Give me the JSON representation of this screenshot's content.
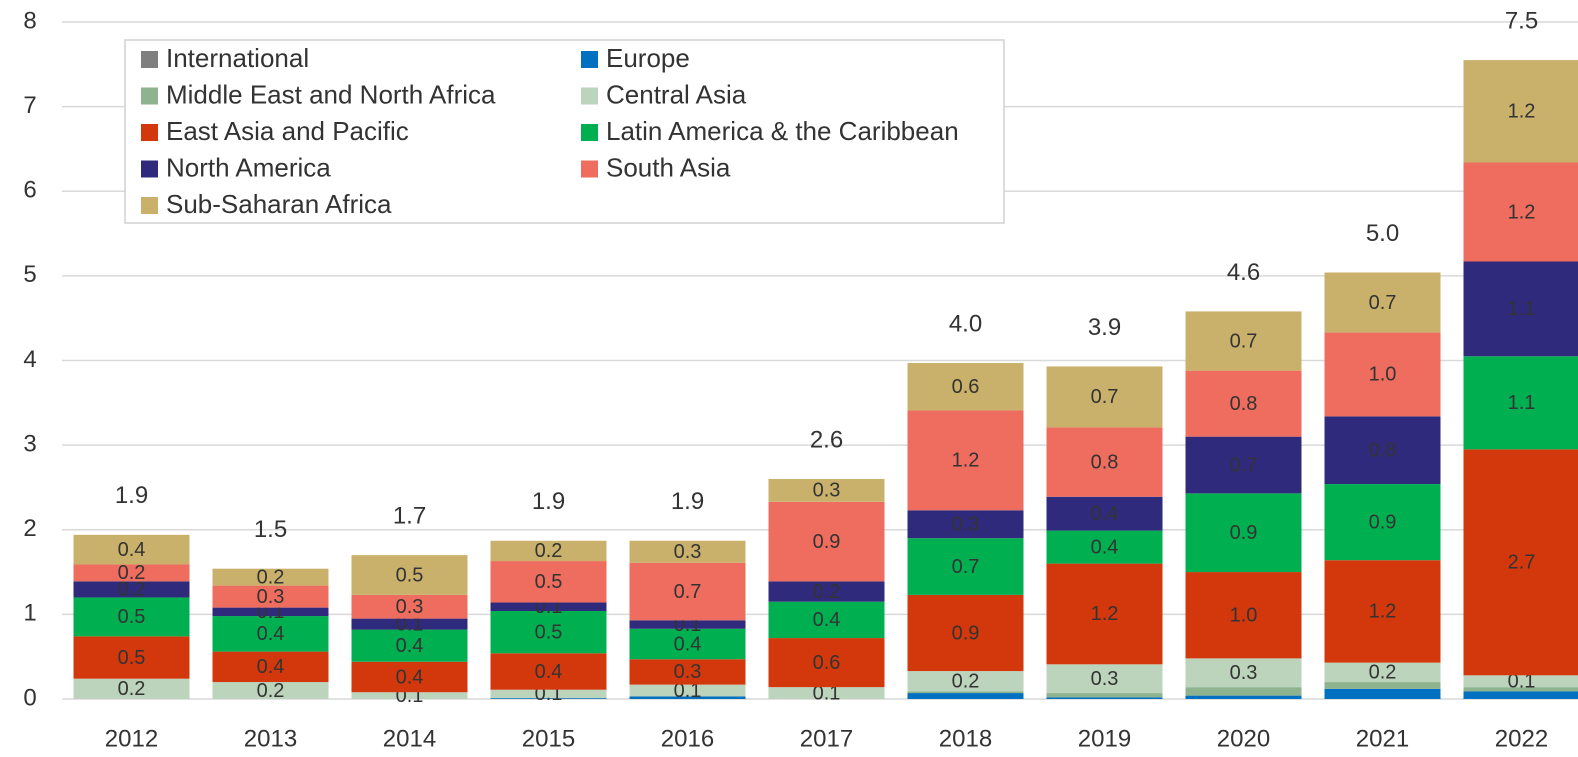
{
  "chart_data": {
    "type": "stacked_bar",
    "categories": [
      "2012",
      "2013",
      "2014",
      "2015",
      "2016",
      "2017",
      "2018",
      "2019",
      "2020",
      "2021",
      "2022"
    ],
    "series": [
      {
        "name": "International",
        "color": "#7f7f7f",
        "label_color": "#333333",
        "values": [
          0,
          0,
          0,
          0,
          0,
          0,
          0,
          0,
          0,
          0,
          0
        ],
        "value_labels": [
          null,
          null,
          null,
          null,
          null,
          null,
          null,
          null,
          null,
          null,
          null
        ]
      },
      {
        "name": "Europe",
        "color": "#0070c0",
        "label_color": "#ffffff",
        "values": [
          0,
          0,
          0,
          0.01,
          0.03,
          0,
          0.07,
          0.02,
          0.04,
          0.12,
          0.09
        ],
        "value_labels": [
          null,
          null,
          null,
          null,
          null,
          null,
          null,
          null,
          null,
          null,
          null
        ]
      },
      {
        "name": "Middle East and North Africa",
        "color": "#8db38f",
        "label_color": "#333333",
        "values": [
          0,
          0,
          0,
          0,
          0,
          0,
          0.02,
          0.05,
          0.1,
          0.08,
          0.05
        ],
        "value_labels": [
          null,
          null,
          null,
          null,
          null,
          null,
          null,
          null,
          null,
          null,
          null
        ]
      },
      {
        "name": "Central Asia",
        "color": "#bcd3bc",
        "label_color": "#333333",
        "values": [
          0.24,
          0.2,
          0.08,
          0.1,
          0.14,
          0.14,
          0.24,
          0.34,
          0.34,
          0.23,
          0.14
        ],
        "value_labels": [
          "0.2",
          "0.2",
          "0.1",
          "0.1",
          "0.1",
          "0.1",
          "0.2",
          "0.3",
          "0.3",
          "0.2",
          "0.1"
        ]
      },
      {
        "name": "East Asia and Pacific",
        "color": "#d2380c",
        "label_color": "#ffffff",
        "values": [
          0.5,
          0.36,
          0.36,
          0.43,
          0.3,
          0.58,
          0.9,
          1.19,
          1.02,
          1.21,
          2.67
        ],
        "value_labels": [
          "0.5",
          "0.4",
          "0.4",
          "0.4",
          "0.3",
          "0.6",
          "0.9",
          "1.2",
          "1.0",
          "1.2",
          "2.7"
        ]
      },
      {
        "name": "Latin America & the Caribbean",
        "color": "#00b050",
        "label_color": "#ffffff",
        "values": [
          0.46,
          0.42,
          0.38,
          0.5,
          0.36,
          0.43,
          0.67,
          0.39,
          0.93,
          0.9,
          1.1
        ],
        "value_labels": [
          "0.5",
          "0.4",
          "0.4",
          "0.5",
          "0.4",
          "0.4",
          "0.7",
          "0.4",
          "0.9",
          "0.9",
          "1.1"
        ]
      },
      {
        "name": "North America",
        "color": "#2f2a7c",
        "label_color": "#ffffff",
        "values": [
          0.19,
          0.1,
          0.13,
          0.1,
          0.1,
          0.24,
          0.33,
          0.4,
          0.67,
          0.8,
          1.12
        ],
        "value_labels": [
          "0.2",
          "0.1",
          "0.1",
          "0.1",
          "0.1",
          "0.2",
          "0.3",
          "0.4",
          "0.7",
          "0.8",
          "1.1"
        ]
      },
      {
        "name": "South Asia",
        "color": "#ee6d5e",
        "label_color": "#333333",
        "values": [
          0.2,
          0.26,
          0.28,
          0.49,
          0.68,
          0.94,
          1.18,
          0.82,
          0.78,
          0.99,
          1.17
        ],
        "value_labels": [
          "0.2",
          "0.3",
          "0.3",
          "0.5",
          "0.7",
          "0.9",
          "1.2",
          "0.8",
          "0.8",
          "1.0",
          "1.2"
        ]
      },
      {
        "name": "Sub-Saharan Africa",
        "color": "#c9b16c",
        "label_color": "#333333",
        "values": [
          0.35,
          0.2,
          0.47,
          0.24,
          0.26,
          0.27,
          0.56,
          0.72,
          0.7,
          0.71,
          1.21
        ],
        "value_labels": [
          "0.4",
          "0.2",
          "0.5",
          "0.2",
          "0.3",
          "0.3",
          "0.6",
          "0.7",
          "0.7",
          "0.7",
          "1.2"
        ]
      }
    ],
    "total_labels": [
      "1.9",
      "1.5",
      "1.7",
      "1.9",
      "1.9",
      "2.6",
      "4.0",
      "3.9",
      "4.6",
      "5.0",
      "7.5"
    ],
    "ylim": [
      0,
      8
    ],
    "yticks": [
      0,
      1,
      2,
      3,
      4,
      5,
      6,
      7,
      8
    ],
    "grid": true,
    "legend": "top-left"
  }
}
